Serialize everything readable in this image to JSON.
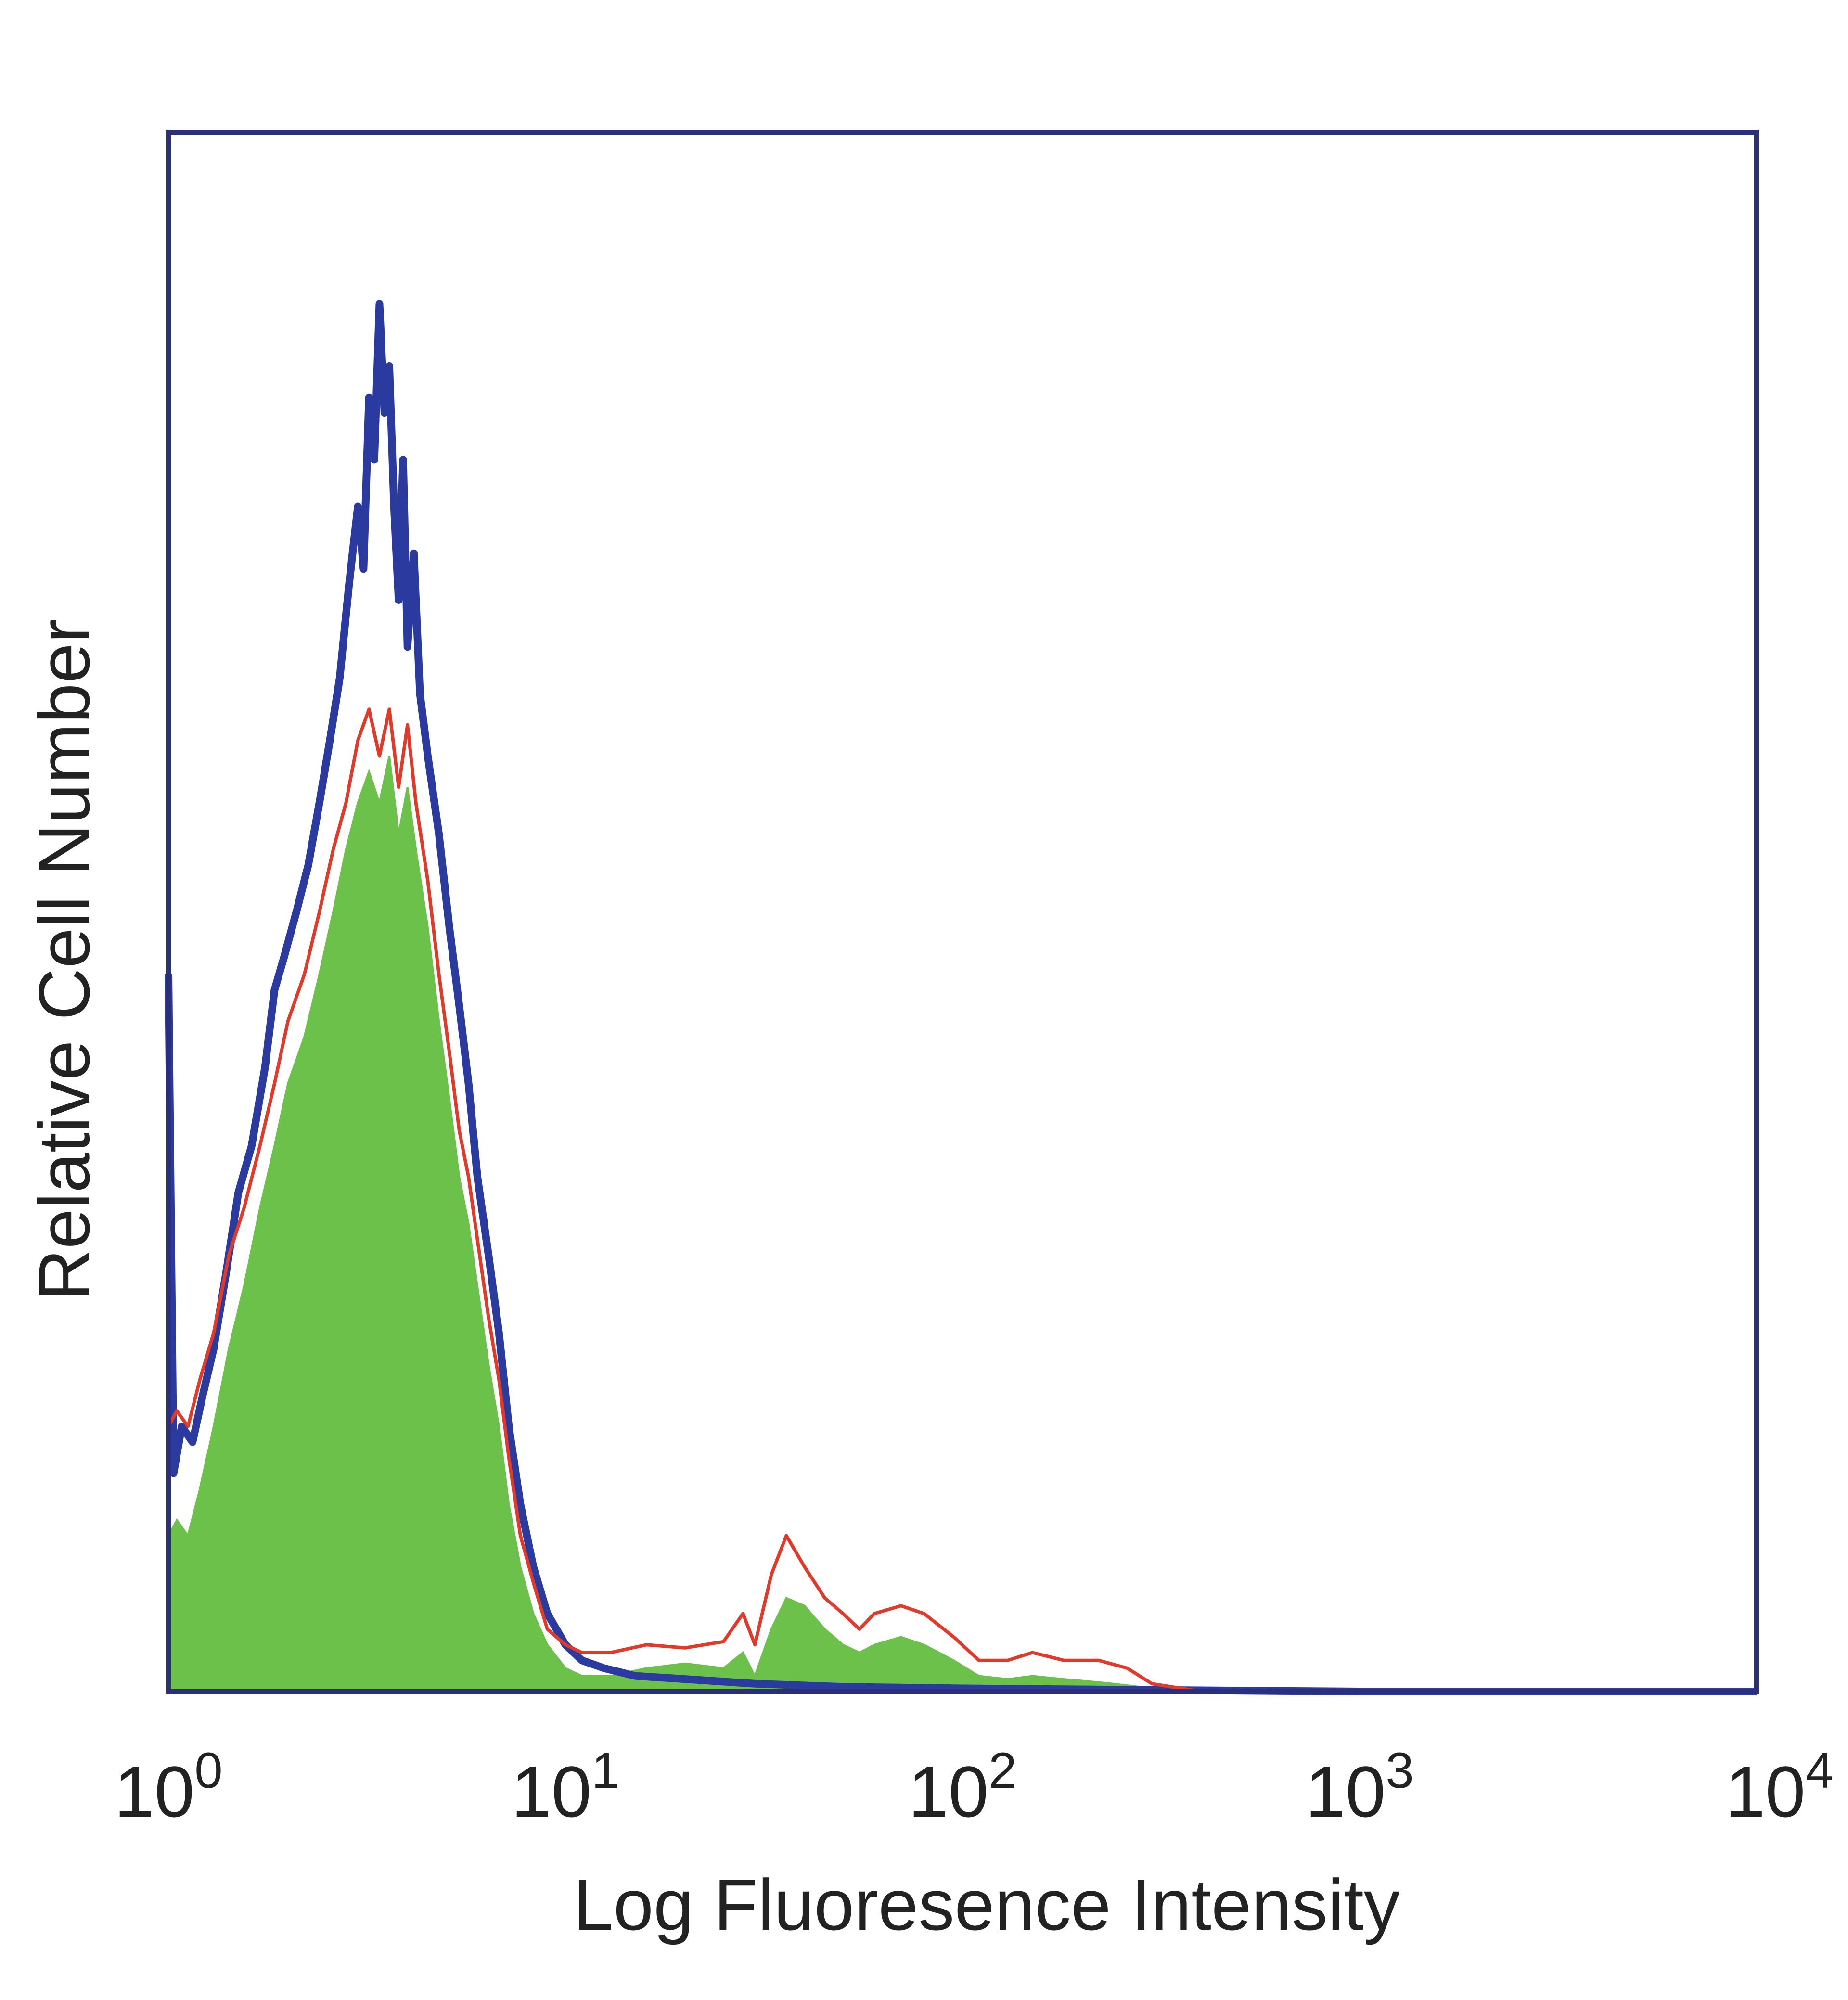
{
  "chart_data": {
    "type": "area",
    "title": "",
    "xlabel": "Log Fluoresence Intensity",
    "ylabel": "Relative Cell Number",
    "x_scale": "log",
    "xlim": [
      1,
      10000
    ],
    "ylim": [
      0,
      100
    ],
    "grid": false,
    "legend": "none",
    "x_ticks": [
      {
        "base": "10",
        "exp": "0",
        "value": 1
      },
      {
        "base": "10",
        "exp": "1",
        "value": 10
      },
      {
        "base": "10",
        "exp": "2",
        "value": 100
      },
      {
        "base": "10",
        "exp": "3",
        "value": 1000
      },
      {
        "base": "10",
        "exp": "4",
        "value": 10000
      }
    ],
    "series": [
      {
        "color": "#2b3a9e",
        "fill": "none",
        "points": [
          [
            1.0,
            46
          ],
          [
            1.03,
            14
          ],
          [
            1.08,
            17
          ],
          [
            1.15,
            16
          ],
          [
            1.22,
            19
          ],
          [
            1.3,
            22
          ],
          [
            1.4,
            27
          ],
          [
            1.5,
            32
          ],
          [
            1.62,
            35
          ],
          [
            1.75,
            40
          ],
          [
            1.85,
            45
          ],
          [
            1.95,
            47
          ],
          [
            2.1,
            50
          ],
          [
            2.25,
            53
          ],
          [
            2.4,
            57
          ],
          [
            2.55,
            61
          ],
          [
            2.7,
            65
          ],
          [
            2.85,
            71
          ],
          [
            3.0,
            76
          ],
          [
            3.1,
            72
          ],
          [
            3.2,
            83
          ],
          [
            3.3,
            79
          ],
          [
            3.4,
            89
          ],
          [
            3.5,
            82
          ],
          [
            3.6,
            85
          ],
          [
            3.7,
            76
          ],
          [
            3.8,
            70
          ],
          [
            3.9,
            79
          ],
          [
            4.0,
            67
          ],
          [
            4.15,
            73
          ],
          [
            4.3,
            64
          ],
          [
            4.5,
            60
          ],
          [
            4.8,
            55
          ],
          [
            5.1,
            49
          ],
          [
            5.4,
            44
          ],
          [
            5.7,
            39
          ],
          [
            6.0,
            33
          ],
          [
            6.4,
            28
          ],
          [
            6.8,
            23
          ],
          [
            7.2,
            17
          ],
          [
            7.7,
            12
          ],
          [
            8.3,
            8
          ],
          [
            9.0,
            5
          ],
          [
            10.0,
            3
          ],
          [
            11.0,
            2
          ],
          [
            12.5,
            1.5
          ],
          [
            15,
            1
          ],
          [
            20,
            0.8
          ],
          [
            30,
            0.5
          ],
          [
            50,
            0.3
          ],
          [
            100,
            0.2
          ],
          [
            300,
            0.1
          ],
          [
            1000,
            0
          ],
          [
            10000,
            0
          ]
        ]
      },
      {
        "color": "#e03a2a",
        "fill": "none",
        "points": [
          [
            1.0,
            17
          ],
          [
            1.05,
            18
          ],
          [
            1.12,
            17
          ],
          [
            1.2,
            20
          ],
          [
            1.3,
            23
          ],
          [
            1.42,
            28
          ],
          [
            1.55,
            31
          ],
          [
            1.7,
            35
          ],
          [
            1.85,
            39
          ],
          [
            2.0,
            43
          ],
          [
            2.2,
            46
          ],
          [
            2.4,
            50
          ],
          [
            2.6,
            54
          ],
          [
            2.8,
            57
          ],
          [
            3.0,
            61
          ],
          [
            3.2,
            63
          ],
          [
            3.4,
            60
          ],
          [
            3.6,
            63
          ],
          [
            3.8,
            58
          ],
          [
            4.0,
            62
          ],
          [
            4.2,
            57
          ],
          [
            4.5,
            52
          ],
          [
            4.8,
            46
          ],
          [
            5.1,
            41
          ],
          [
            5.4,
            36
          ],
          [
            5.7,
            33
          ],
          [
            6.0,
            29
          ],
          [
            6.4,
            24
          ],
          [
            6.8,
            20
          ],
          [
            7.2,
            15
          ],
          [
            7.7,
            10
          ],
          [
            8.3,
            7
          ],
          [
            9.0,
            4
          ],
          [
            10.0,
            3
          ],
          [
            11.0,
            2.5
          ],
          [
            13,
            2.5
          ],
          [
            16,
            3
          ],
          [
            20,
            2.8
          ],
          [
            25,
            3.2
          ],
          [
            28,
            5
          ],
          [
            30,
            3
          ],
          [
            33,
            7.5
          ],
          [
            36,
            10
          ],
          [
            40,
            8
          ],
          [
            45,
            6
          ],
          [
            50,
            5
          ],
          [
            55,
            4
          ],
          [
            60,
            5
          ],
          [
            70,
            5.5
          ],
          [
            80,
            5
          ],
          [
            95,
            3.5
          ],
          [
            110,
            2
          ],
          [
            130,
            2
          ],
          [
            150,
            2.5
          ],
          [
            180,
            2
          ],
          [
            220,
            2
          ],
          [
            260,
            1.5
          ],
          [
            300,
            0.5
          ],
          [
            400,
            0
          ],
          [
            10000,
            0
          ]
        ]
      },
      {
        "color": "#6cc14a",
        "fill": "#6cc14a",
        "points": [
          [
            1.0,
            10
          ],
          [
            1.05,
            11
          ],
          [
            1.12,
            10
          ],
          [
            1.2,
            13
          ],
          [
            1.3,
            17
          ],
          [
            1.42,
            22
          ],
          [
            1.55,
            26
          ],
          [
            1.7,
            31
          ],
          [
            1.85,
            35
          ],
          [
            2.0,
            39
          ],
          [
            2.2,
            42
          ],
          [
            2.4,
            46
          ],
          [
            2.6,
            50
          ],
          [
            2.8,
            54
          ],
          [
            3.0,
            57
          ],
          [
            3.2,
            59
          ],
          [
            3.4,
            57
          ],
          [
            3.6,
            60
          ],
          [
            3.8,
            55
          ],
          [
            4.0,
            58
          ],
          [
            4.2,
            54
          ],
          [
            4.5,
            49
          ],
          [
            4.8,
            43
          ],
          [
            5.1,
            38
          ],
          [
            5.4,
            33
          ],
          [
            5.7,
            30
          ],
          [
            6.0,
            26
          ],
          [
            6.4,
            21
          ],
          [
            6.8,
            17
          ],
          [
            7.2,
            12
          ],
          [
            7.7,
            8
          ],
          [
            8.3,
            5
          ],
          [
            9.0,
            3
          ],
          [
            10.0,
            1.5
          ],
          [
            11.0,
            1
          ],
          [
            13,
            1
          ],
          [
            16,
            1.5
          ],
          [
            20,
            1.8
          ],
          [
            25,
            1.5
          ],
          [
            28,
            2.5
          ],
          [
            30,
            1
          ],
          [
            33,
            4
          ],
          [
            36,
            6
          ],
          [
            40,
            5.5
          ],
          [
            45,
            4
          ],
          [
            50,
            3
          ],
          [
            55,
            2.5
          ],
          [
            60,
            3
          ],
          [
            70,
            3.5
          ],
          [
            80,
            3
          ],
          [
            95,
            2
          ],
          [
            110,
            1
          ],
          [
            130,
            0.8
          ],
          [
            150,
            1
          ],
          [
            180,
            0.8
          ],
          [
            220,
            0.6
          ],
          [
            260,
            0.4
          ],
          [
            300,
            0.2
          ],
          [
            400,
            0
          ],
          [
            10000,
            0
          ]
        ]
      }
    ]
  }
}
